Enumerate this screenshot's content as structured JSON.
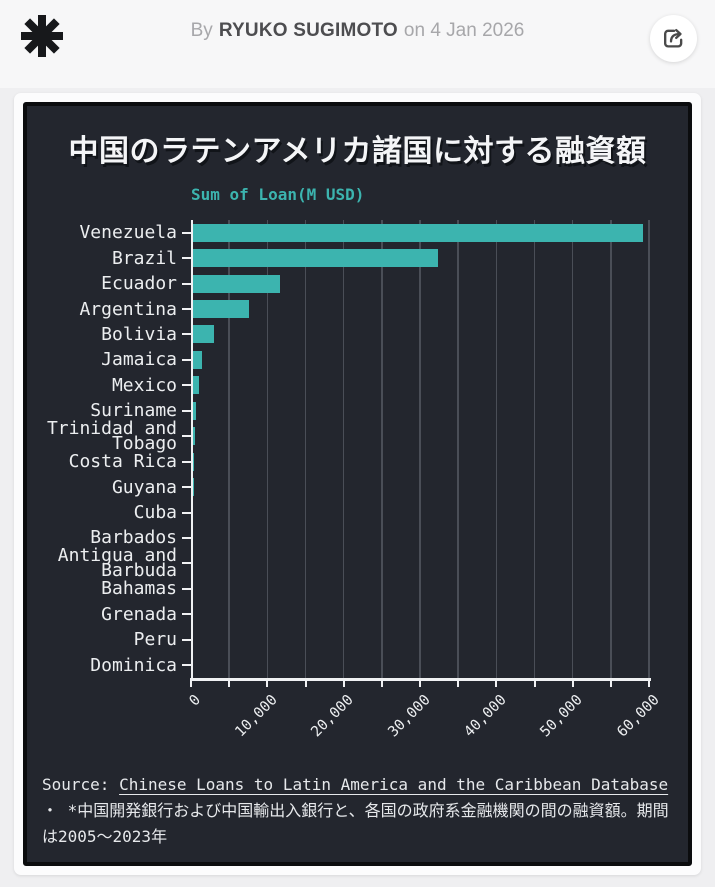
{
  "header": {
    "byline_prefix": "By",
    "author": "RYUKO SUGIMOTO",
    "date_text": "on 4 Jan 2026"
  },
  "icons": {
    "logo": "asterisk-icon",
    "share": "share-arrow-icon"
  },
  "colors": {
    "accent": "#3cb4af",
    "panel_bg": "#23262e",
    "panel_border": "#0b0c0e",
    "gridline": "#4a4e57",
    "axis": "#f0f1f3"
  },
  "chart_data": {
    "type": "bar",
    "orientation": "horizontal",
    "title": "中国のラテンアメリカ諸国に対する融資額",
    "series_label": "Sum of Loan(M USD)",
    "categories": [
      "Venezuela",
      "Brazil",
      "Ecuador",
      "Argentina",
      "Bolivia",
      "Jamaica",
      "Mexico",
      "Suriname",
      "Trinidad and Tobago",
      "Costa Rica",
      "Guyana",
      "Cuba",
      "Barbados",
      "Antigua and Barbuda",
      "Bahamas",
      "Grenada",
      "Peru",
      "Dominica"
    ],
    "values": [
      59200,
      32400,
      11700,
      7600,
      3050,
      1450,
      1000,
      650,
      520,
      430,
      390,
      300,
      190,
      130,
      90,
      45,
      35,
      25
    ],
    "value_unit": "M USD",
    "xlabel": "",
    "ylabel": "",
    "xlim": [
      0,
      65000
    ],
    "axis_max_tick": 60000,
    "tick_step": 5000,
    "grid_step": 5000,
    "grid": true,
    "legend_position": "top-left",
    "bar_color": "#3cb4af",
    "labeled_ticks": [
      {
        "value": 0,
        "label": "0"
      },
      {
        "value": 10000,
        "label": "10,000"
      },
      {
        "value": 20000,
        "label": "20,000"
      },
      {
        "value": 30000,
        "label": "30,000"
      },
      {
        "value": 40000,
        "label": "40,000"
      },
      {
        "value": 50000,
        "label": "50,000"
      },
      {
        "value": 60000,
        "label": "60,000"
      }
    ]
  },
  "source": {
    "prefix": "Source: ",
    "link_text": "Chinese Loans to Latin America and the Caribbean Database",
    "separator": " ・ ",
    "note": "*中国開発銀行および中国輸出入銀行と、各国の政府系金融機関の間の融資額。期間は2005〜2023年"
  }
}
